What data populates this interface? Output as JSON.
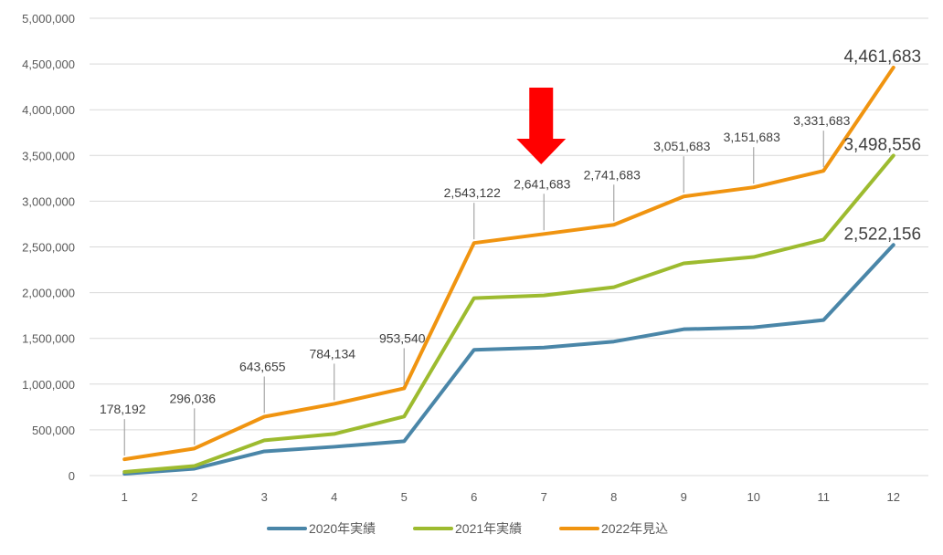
{
  "chart_data": {
    "type": "line",
    "title": "",
    "xlabel": "",
    "ylabel": "",
    "categories": [
      "1",
      "2",
      "3",
      "4",
      "5",
      "6",
      "7",
      "8",
      "9",
      "10",
      "11",
      "12"
    ],
    "ylim": [
      0,
      5000000
    ],
    "y_ticks": [
      0,
      500000,
      1000000,
      1500000,
      2000000,
      2500000,
      3000000,
      3500000,
      4000000,
      4500000,
      5000000
    ],
    "y_tick_labels": [
      "0",
      "500,000",
      "1,000,000",
      "1,500,000",
      "2,000,000",
      "2,500,000",
      "3,000,000",
      "3,500,000",
      "4,000,000",
      "4,500,000",
      "5,000,000"
    ],
    "grid": true,
    "legend_position": "bottom",
    "series": [
      {
        "name": "2020年実績",
        "color": "#4a86a8",
        "values": [
          20000,
          75000,
          265000,
          315000,
          375000,
          1375000,
          1400000,
          1465000,
          1600000,
          1620000,
          1700000,
          2522156
        ],
        "labels": [
          "",
          "",
          "",
          "",
          "",
          "",
          "",
          "",
          "",
          "",
          "",
          "2,522,156"
        ]
      },
      {
        "name": "2021年実績",
        "color": "#9dbb2f",
        "values": [
          40000,
          105000,
          385000,
          455000,
          645000,
          1940000,
          1970000,
          2060000,
          2320000,
          2390000,
          2580000,
          3498556
        ],
        "labels": [
          "",
          "",
          "",
          "",
          "",
          "",
          "",
          "",
          "",
          "",
          "",
          "3,498,556"
        ]
      },
      {
        "name": "2022年見込",
        "color": "#f09410",
        "values": [
          178192,
          296036,
          643655,
          784134,
          953540,
          2543122,
          2641683,
          2741683,
          3051683,
          3151683,
          3331683,
          4461683
        ],
        "labels": [
          "178,192",
          "296,036",
          "643,655",
          "784,134",
          "953,540",
          "2,543,122",
          "2,641,683",
          "2,741,683",
          "3,051,683",
          "3,151,683",
          "3,331,683",
          "4,461,683"
        ]
      }
    ],
    "annotations": [
      {
        "type": "arrow-down",
        "color": "#ff0000",
        "category": "7"
      }
    ]
  }
}
